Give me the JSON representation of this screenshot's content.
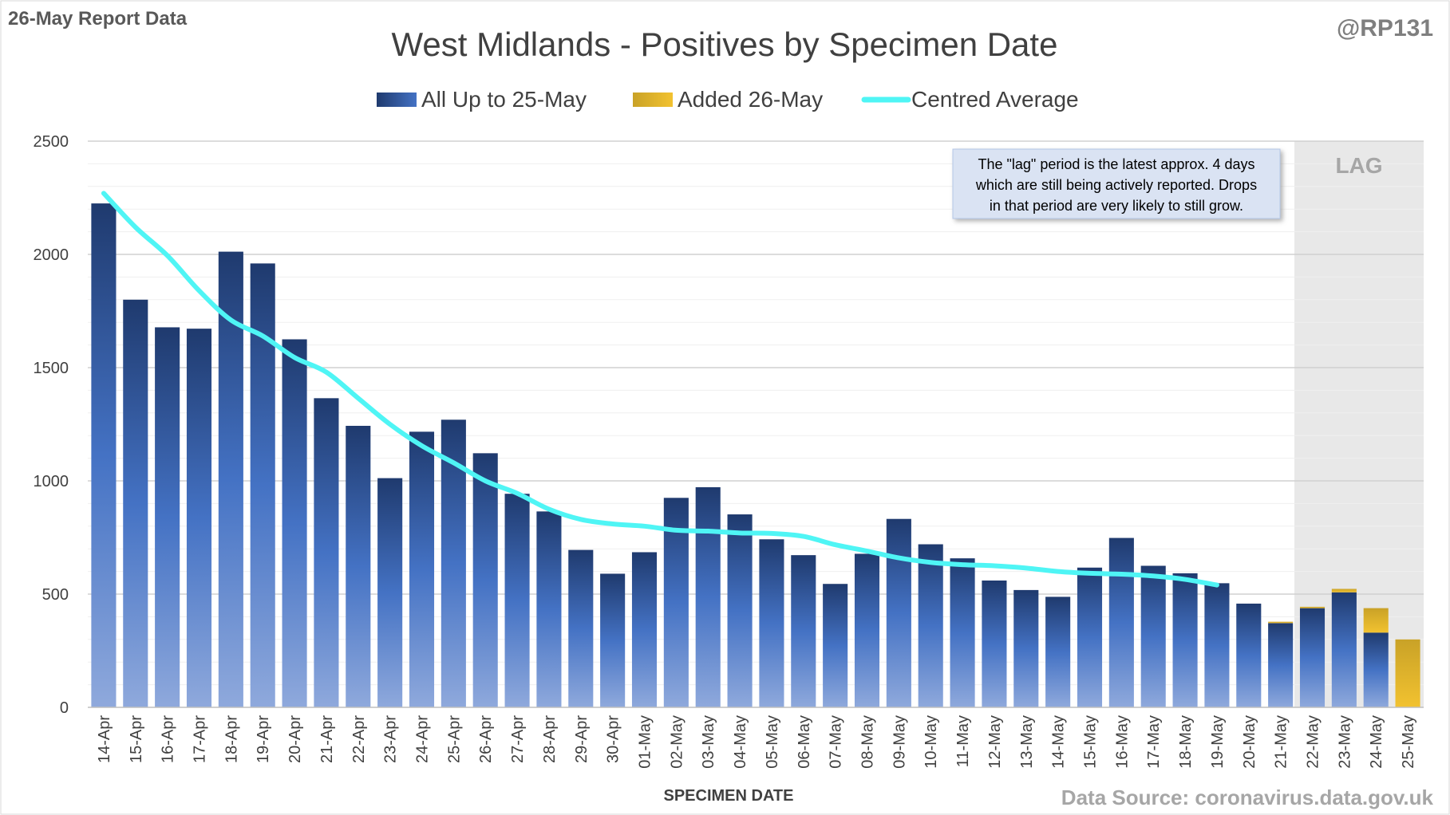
{
  "header": {
    "report_label": "26-May Report Data",
    "handle": "@RP131"
  },
  "footer": {
    "source": "Data Source: coronavirus.data.gov.uk"
  },
  "annotation": {
    "lines": [
      "The \"lag\" period is the latest approx. 4 days",
      "which are still being actively reported.  Drops",
      "in that period are very likely to still grow."
    ]
  },
  "lag_label": "LAG",
  "colors": {
    "bar_top": "#1f3a6e",
    "bar_mid": "#4472c4",
    "bar_bottom": "#8fa9dc",
    "added_top": "#c9a227",
    "added_bottom": "#f2c230",
    "average": "#4ff5f5",
    "lag_shade": "#e8e8e8",
    "grid": "#d9d9d9"
  },
  "chart_data": {
    "type": "bar",
    "title": "West Midlands - Positives by Specimen Date",
    "xlabel": "SPECIMEN DATE",
    "ylabel": "",
    "ylim": [
      0,
      2500
    ],
    "yticks": [
      0,
      500,
      1000,
      1500,
      2000,
      2500
    ],
    "stacked": true,
    "grid": true,
    "legend_position": "top-center",
    "lag_period": [
      "22-May",
      "25-May"
    ],
    "categories": [
      "14-Apr",
      "15-Apr",
      "16-Apr",
      "17-Apr",
      "18-Apr",
      "19-Apr",
      "20-Apr",
      "21-Apr",
      "22-Apr",
      "23-Apr",
      "24-Apr",
      "25-Apr",
      "26-Apr",
      "27-Apr",
      "28-Apr",
      "29-Apr",
      "30-Apr",
      "01-May",
      "02-May",
      "03-May",
      "04-May",
      "05-May",
      "06-May",
      "07-May",
      "08-May",
      "09-May",
      "10-May",
      "11-May",
      "12-May",
      "13-May",
      "14-May",
      "15-May",
      "16-May",
      "17-May",
      "18-May",
      "19-May",
      "20-May",
      "21-May",
      "22-May",
      "23-May",
      "24-May",
      "25-May"
    ],
    "series": [
      {
        "name": "All Up to 25-May",
        "values": [
          2225,
          1800,
          1678,
          1672,
          2012,
          1960,
          1625,
          1365,
          1243,
          1012,
          1217,
          1270,
          1122,
          943,
          865,
          695,
          590,
          685,
          925,
          972,
          852,
          742,
          672,
          545,
          678,
          832,
          720,
          658,
          560,
          518,
          488,
          617,
          748,
          625,
          592,
          548,
          458,
          372,
          438,
          508,
          330,
          0
        ]
      },
      {
        "name": "Added 26-May",
        "values": [
          0,
          0,
          0,
          0,
          0,
          0,
          0,
          0,
          0,
          0,
          0,
          0,
          0,
          0,
          0,
          0,
          0,
          0,
          0,
          0,
          0,
          0,
          0,
          0,
          0,
          0,
          0,
          0,
          0,
          0,
          0,
          0,
          0,
          0,
          0,
          0,
          0,
          6,
          6,
          15,
          108,
          300
        ]
      },
      {
        "name": "Centred Average",
        "type": "line",
        "values": [
          2270,
          2120,
          1995,
          1840,
          1710,
          1640,
          1545,
          1480,
          1365,
          1250,
          1155,
          1080,
          1000,
          945,
          875,
          830,
          810,
          800,
          782,
          778,
          770,
          768,
          755,
          718,
          690,
          660,
          640,
          630,
          625,
          615,
          600,
          592,
          588,
          580,
          565,
          540,
          null,
          null,
          null,
          null,
          null,
          null
        ]
      }
    ]
  }
}
